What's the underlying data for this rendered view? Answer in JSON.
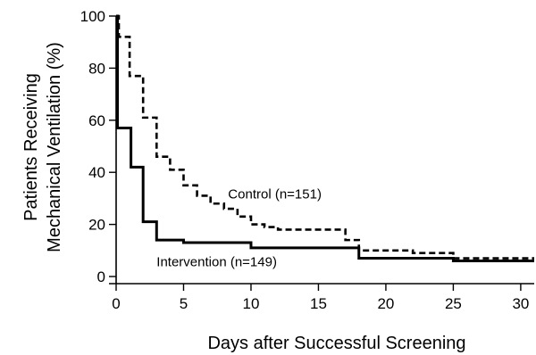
{
  "chart_data": {
    "type": "line",
    "xlabel": "Days after Successful Screening",
    "ylabel_lines": [
      "Patients Receiving",
      "Mechanical Ventilation (%)"
    ],
    "xlim": [
      0,
      31
    ],
    "ylim": [
      0,
      100
    ],
    "xticks": [
      0,
      5,
      10,
      15,
      20,
      25,
      30
    ],
    "yticks": [
      0,
      20,
      40,
      60,
      80,
      100
    ],
    "grid": false,
    "step": true,
    "series": [
      {
        "name": "Control (n=151)",
        "style": "dashed",
        "color": "#000000",
        "x": [
          0,
          0.2,
          1,
          2,
          3,
          4,
          5,
          6,
          7,
          8,
          9,
          10,
          11,
          12,
          17,
          18,
          22,
          25,
          31
        ],
        "y": [
          100,
          92,
          77,
          61,
          46,
          41,
          35,
          31,
          28,
          26,
          23,
          20,
          19,
          18,
          14,
          10,
          9,
          7,
          7
        ]
      },
      {
        "name": "Intervention (n=149)",
        "style": "solid",
        "color": "#000000",
        "x": [
          0,
          0.1,
          1.1,
          2,
          3,
          5,
          10,
          18,
          25,
          31
        ],
        "y": [
          100,
          57,
          42,
          21,
          14,
          13,
          11,
          7,
          6,
          6
        ]
      }
    ],
    "annotations": [
      {
        "text": "Control (n=151)",
        "x": 8.3,
        "y": 30
      },
      {
        "text": "Intervention (n=149)",
        "x": 3,
        "y": 4
      }
    ]
  }
}
